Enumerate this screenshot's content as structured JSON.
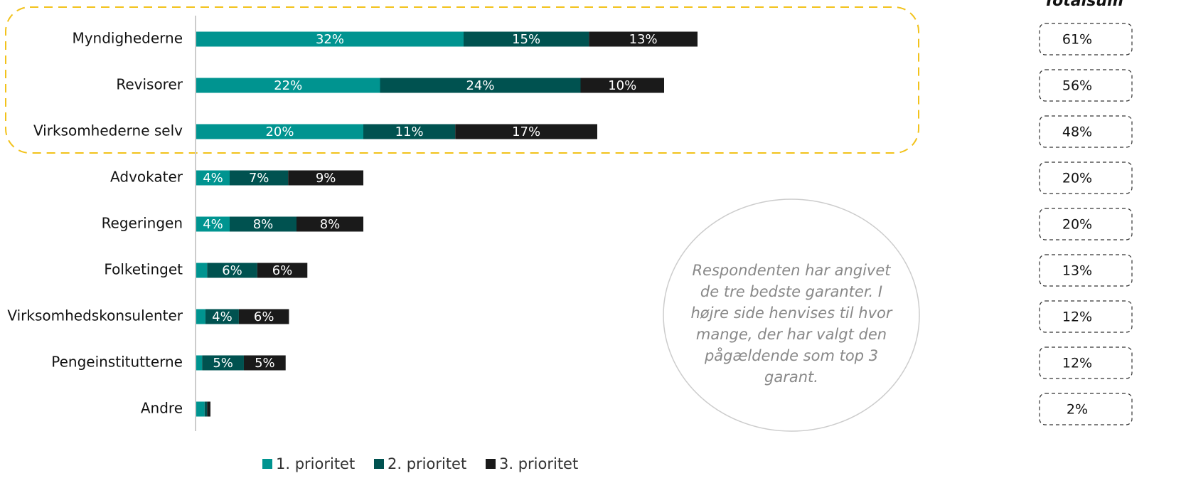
{
  "chart_data": {
    "type": "bar",
    "orientation": "horizontal",
    "stacked": true,
    "categories": [
      "Myndighederne",
      "Revisorer",
      "Virksomhederne selv",
      "Advokater",
      "Regeringen",
      "Folketinget",
      "Virksomhedskonsulenter",
      "Pengeinstitutterne",
      "Andre"
    ],
    "xlim": [
      0,
      100
    ],
    "series": [
      {
        "name": "1. prioritet",
        "color": "#009490",
        "values": [
          32,
          22,
          20,
          4,
          4,
          1.3,
          1.1,
          0.7,
          1.0
        ],
        "value_labels": [
          "32%",
          "22%",
          "20%",
          "4%",
          "4%",
          null,
          null,
          null,
          null
        ]
      },
      {
        "name": "2. prioritet",
        "color": "#005250",
        "values": [
          15,
          24,
          11,
          7,
          8,
          6,
          4,
          5,
          0.3
        ],
        "value_labels": [
          "15%",
          "24%",
          "11%",
          "7%",
          "8%",
          "6%",
          "4%",
          "5%",
          null
        ]
      },
      {
        "name": "3. prioritet",
        "color": "#1a1a1a",
        "values": [
          13,
          10,
          17,
          9,
          8,
          6,
          6,
          5,
          0.4
        ],
        "value_labels": [
          "13%",
          "10%",
          "17%",
          "9%",
          "8%",
          "6%",
          "6%",
          "5%",
          null
        ]
      }
    ],
    "totals_title": "Totalsum",
    "totals": [
      "61%",
      "56%",
      "48%",
      "20%",
      "20%",
      "13%",
      "12%",
      "12%",
      "2%"
    ],
    "annotation": [
      "Respondenten har angivet",
      "de tre bedste garanter. I",
      "højre side henvises til hvor",
      "mange, der har valgt den",
      "pågældende som top 3",
      "garant."
    ],
    "legend": "bottom"
  }
}
